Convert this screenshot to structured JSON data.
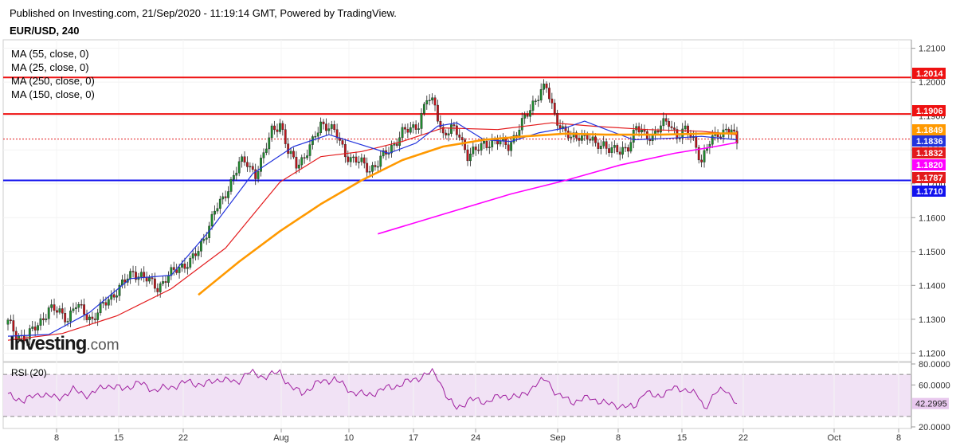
{
  "header": {
    "published": "Published on Investing.com, 21/Sep/2020 - 11:19:14 GMT, Powered by TradingView.",
    "symbol": "EUR/USD, 240"
  },
  "legend": {
    "ma": [
      "MA (55, close, 0)",
      "MA (25, close, 0)",
      "MA (250, close, 0)",
      "MA (150, close, 0)"
    ]
  },
  "rsi": {
    "label": "RSI (20)",
    "value_label": "42.2995"
  },
  "brand": {
    "name": "Investing",
    "suffix": ".com"
  },
  "colors": {
    "up_candle": "#1e8c2e",
    "down_candle": "#c0141b",
    "ma55": "#e31a1c",
    "ma25": "#2233dd",
    "ma250": "#ff00ff",
    "ma150": "#ff9900",
    "resistance": "#ee1111",
    "support": "#1111ee",
    "rsi_line": "#a020a0",
    "rsi_band": "#f1e2f5"
  },
  "chart_data": [
    {
      "type": "candlestick",
      "title": "EUR/USD, 240",
      "x_tick_labels": [
        "8",
        "15",
        "22",
        "Aug",
        "10",
        "17",
        "24",
        "Sep",
        "8",
        "15",
        "22",
        "Oct",
        "8"
      ],
      "y_tick_labels": [
        "1.2100",
        "1.2000",
        "1.1900",
        "1.1800",
        "1.1700",
        "1.1600",
        "1.1500",
        "1.1400",
        "1.1300",
        "1.1200"
      ],
      "ylim": [
        1.1175,
        1.2125
      ],
      "price_labels": [
        {
          "value": "1.2014",
          "color": "#ee1111"
        },
        {
          "value": "1.1906",
          "color": "#ee1111"
        },
        {
          "value": "1.1849",
          "color": "#ff9900"
        },
        {
          "value": "1.1836",
          "color": "#2233dd"
        },
        {
          "value": "1.1832",
          "color": "#e31a1c"
        },
        {
          "value": "1.1820",
          "color": "#ff00ff"
        },
        {
          "value": "1.1787",
          "color": "#e31a1c"
        },
        {
          "value": "1.1710",
          "color": "#1111ee"
        }
      ],
      "horizontal_lines": [
        {
          "level": 1.2014,
          "color": "#ee1111",
          "style": "solid"
        },
        {
          "level": 1.1906,
          "color": "#ee1111",
          "style": "solid"
        },
        {
          "level": 1.171,
          "color": "#1111ee",
          "style": "solid"
        },
        {
          "level": 1.1832,
          "color": "#e31a1c",
          "style": "dotted"
        }
      ],
      "close_series": [
        [
          0,
          1.129
        ],
        [
          3,
          1.1255
        ],
        [
          7,
          1.1245
        ],
        [
          11,
          1.1285
        ],
        [
          15,
          1.133
        ],
        [
          19,
          1.132
        ],
        [
          22,
          1.1305
        ],
        [
          25,
          1.134
        ],
        [
          28,
          1.132
        ],
        [
          31,
          1.13
        ],
        [
          34,
          1.133
        ],
        [
          37,
          1.136
        ],
        [
          40,
          1.1385
        ],
        [
          43,
          1.141
        ],
        [
          46,
          1.144
        ],
        [
          49,
          1.143
        ],
        [
          52,
          1.141
        ],
        [
          55,
          1.1395
        ],
        [
          58,
          1.142
        ],
        [
          61,
          1.144
        ],
        [
          64,
          1.146
        ],
        [
          67,
          1.147
        ],
        [
          70,
          1.15
        ],
        [
          73,
          1.156
        ],
        [
          76,
          1.162
        ],
        [
          79,
          1.165
        ],
        [
          82,
          1.171
        ],
        [
          85,
          1.176
        ],
        [
          88,
          1.176
        ],
        [
          91,
          1.173
        ],
        [
          94,
          1.178
        ],
        [
          97,
          1.186
        ],
        [
          100,
          1.188
        ],
        [
          103,
          1.179
        ],
        [
          106,
          1.176
        ],
        [
          109,
          1.178
        ],
        [
          112,
          1.182
        ],
        [
          115,
          1.188
        ],
        [
          118,
          1.187
        ],
        [
          121,
          1.184
        ],
        [
          124,
          1.179
        ],
        [
          127,
          1.177
        ],
        [
          130,
          1.176
        ],
        [
          133,
          1.1745
        ],
        [
          136,
          1.176
        ],
        [
          139,
          1.179
        ],
        [
          142,
          1.182
        ],
        [
          145,
          1.185
        ],
        [
          148,
          1.186
        ],
        [
          151,
          1.188
        ],
        [
          154,
          1.195
        ],
        [
          157,
          1.193
        ],
        [
          160,
          1.1845
        ],
        [
          163,
          1.186
        ],
        [
          166,
          1.1845
        ],
        [
          169,
          1.1785
        ],
        [
          172,
          1.1795
        ],
        [
          175,
          1.182
        ],
        [
          178,
          1.1825
        ],
        [
          181,
          1.182
        ],
        [
          184,
          1.1815
        ],
        [
          187,
          1.185
        ],
        [
          190,
          1.189
        ],
        [
          193,
          1.194
        ],
        [
          196,
          1.1975
        ],
        [
          198,
          1.198
        ],
        [
          201,
          1.1905
        ],
        [
          204,
          1.186
        ],
        [
          207,
          1.183
        ],
        [
          210,
          1.1845
        ],
        [
          213,
          1.184
        ],
        [
          216,
          1.181
        ],
        [
          219,
          1.182
        ],
        [
          222,
          1.18
        ],
        [
          225,
          1.179
        ],
        [
          228,
          1.1815
        ],
        [
          231,
          1.1865
        ],
        [
          234,
          1.184
        ],
        [
          237,
          1.1845
        ],
        [
          240,
          1.187
        ],
        [
          243,
          1.188
        ],
        [
          246,
          1.1845
        ],
        [
          249,
          1.1855
        ],
        [
          252,
          1.183
        ],
        [
          255,
          1.177
        ],
        [
          258,
          1.182
        ],
        [
          261,
          1.185
        ],
        [
          264,
          1.186
        ],
        [
          266,
          1.1855
        ],
        [
          268,
          1.1815
        ]
      ],
      "moving_averages": [
        {
          "name": "MA (55, close, 0)",
          "color": "#e31a1c",
          "points": [
            [
              0,
              1.1238
            ],
            [
              20,
              1.1258
            ],
            [
              40,
              1.131
            ],
            [
              60,
              1.139
            ],
            [
              80,
              1.151
            ],
            [
              100,
              1.1705
            ],
            [
              115,
              1.178
            ],
            [
              130,
              1.1795
            ],
            [
              145,
              1.1825
            ],
            [
              160,
              1.1865
            ],
            [
              180,
              1.186
            ],
            [
              200,
              1.188
            ],
            [
              215,
              1.187
            ],
            [
              235,
              1.186
            ],
            [
              255,
              1.1855
            ],
            [
              268,
              1.1845
            ]
          ]
        },
        {
          "name": "MA (25, close, 0)",
          "color": "#2233dd",
          "points": [
            [
              0,
              1.125
            ],
            [
              15,
              1.1255
            ],
            [
              30,
              1.132
            ],
            [
              45,
              1.142
            ],
            [
              60,
              1.143
            ],
            [
              75,
              1.157
            ],
            [
              90,
              1.173
            ],
            [
              105,
              1.181
            ],
            [
              118,
              1.1845
            ],
            [
              128,
              1.182
            ],
            [
              140,
              1.179
            ],
            [
              150,
              1.182
            ],
            [
              158,
              1.187
            ],
            [
              165,
              1.188
            ],
            [
              175,
              1.183
            ],
            [
              185,
              1.1825
            ],
            [
              195,
              1.185
            ],
            [
              205,
              1.1865
            ],
            [
              212,
              1.1885
            ],
            [
              220,
              1.186
            ],
            [
              230,
              1.183
            ],
            [
              245,
              1.1835
            ],
            [
              255,
              1.184
            ],
            [
              268,
              1.183
            ]
          ]
        },
        {
          "name": "MA (250, close, 0)",
          "color": "#ff00ff",
          "points": [
            [
              136,
              1.1552
            ],
            [
              160,
              1.161
            ],
            [
              185,
              1.167
            ],
            [
              205,
              1.171
            ],
            [
              225,
              1.1755
            ],
            [
              245,
              1.179
            ],
            [
              260,
              1.181
            ],
            [
              268,
              1.1822
            ]
          ]
        },
        {
          "name": "MA (150, close, 0)",
          "color": "#ff9900",
          "points": [
            [
              70,
              1.1372
            ],
            [
              85,
              1.147
            ],
            [
              100,
              1.156
            ],
            [
              115,
              1.164
            ],
            [
              130,
              1.171
            ],
            [
              145,
              1.177
            ],
            [
              160,
              1.181
            ],
            [
              175,
              1.183
            ],
            [
              190,
              1.184
            ],
            [
              205,
              1.1848
            ],
            [
              220,
              1.1845
            ],
            [
              240,
              1.1845
            ],
            [
              255,
              1.1848
            ],
            [
              268,
              1.1849
            ]
          ]
        }
      ]
    },
    {
      "type": "line",
      "title": "RSI (20)",
      "y_tick_labels": [
        "80.0000",
        "60.0000",
        "42.2995",
        "20.0000"
      ],
      "ylim": [
        20,
        80
      ],
      "band": [
        30,
        70
      ],
      "series": [
        {
          "name": "RSI (20)",
          "values": [
            [
              0,
              50
            ],
            [
              6,
              45
            ],
            [
              12,
              52
            ],
            [
              18,
              47
            ],
            [
              24,
              55
            ],
            [
              30,
              50
            ],
            [
              36,
              60
            ],
            [
              42,
              56
            ],
            [
              48,
              62
            ],
            [
              54,
              55
            ],
            [
              60,
              58
            ],
            [
              66,
              63
            ],
            [
              72,
              60
            ],
            [
              78,
              66
            ],
            [
              84,
              62
            ],
            [
              88,
              72
            ],
            [
              94,
              68
            ],
            [
              100,
              72
            ],
            [
              104,
              58
            ],
            [
              108,
              52
            ],
            [
              114,
              62
            ],
            [
              120,
              66
            ],
            [
              126,
              54
            ],
            [
              132,
              50
            ],
            [
              138,
              56
            ],
            [
              144,
              60
            ],
            [
              150,
              66
            ],
            [
              156,
              72
            ],
            [
              158,
              68
            ],
            [
              162,
              45
            ],
            [
              165,
              38
            ],
            [
              170,
              46
            ],
            [
              176,
              44
            ],
            [
              182,
              50
            ],
            [
              188,
              48
            ],
            [
              194,
              60
            ],
            [
              198,
              66
            ],
            [
              202,
              50
            ],
            [
              208,
              44
            ],
            [
              214,
              48
            ],
            [
              220,
              42
            ],
            [
              226,
              40
            ],
            [
              230,
              38
            ],
            [
              234,
              54
            ],
            [
              238,
              48
            ],
            [
              244,
              56
            ],
            [
              250,
              56
            ],
            [
              254,
              48
            ],
            [
              256,
              38
            ],
            [
              260,
              52
            ],
            [
              264,
              56
            ],
            [
              268,
              42.3
            ]
          ]
        }
      ]
    }
  ]
}
